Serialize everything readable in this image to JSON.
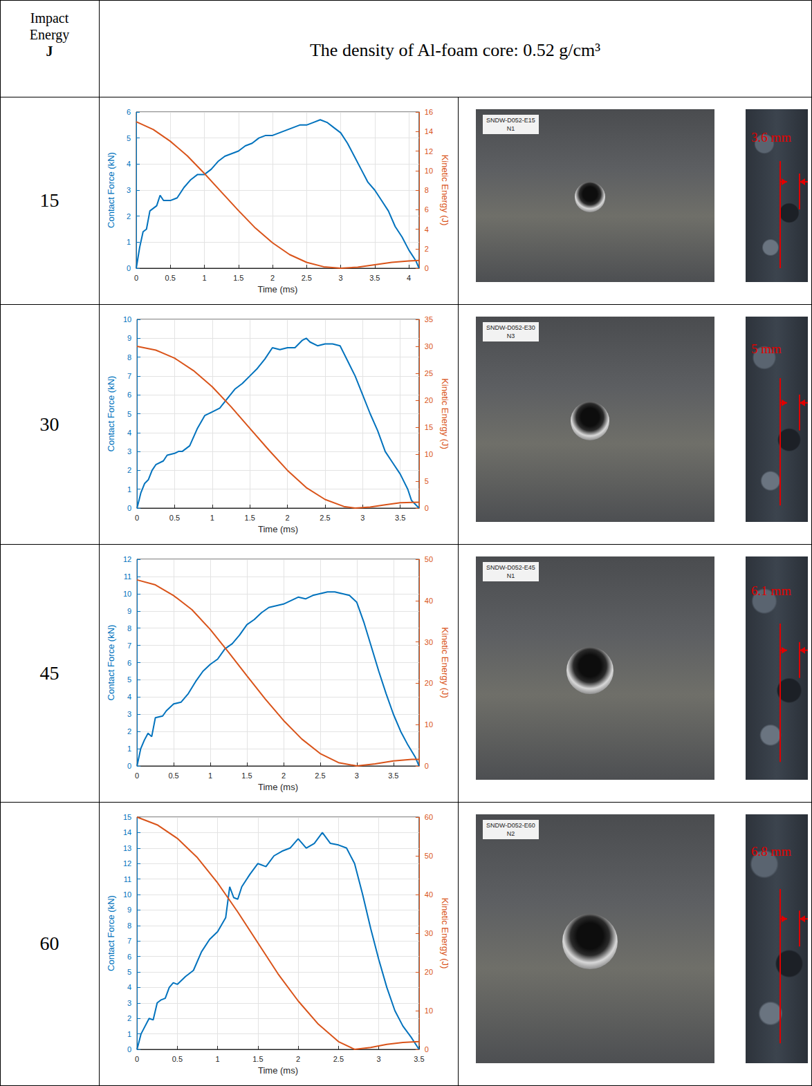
{
  "table": {
    "header": {
      "corner": [
        "Impact",
        "Energy",
        "J"
      ],
      "title": "The density of Al-foam core: 0.52 g/cm³"
    },
    "rows": [
      {
        "energy": 15,
        "specimen": [
          "SNDW-D052-E15",
          "N1"
        ],
        "dent_depth": "3.6 mm"
      },
      {
        "energy": 30,
        "specimen": [
          "SNDW-D052-E30",
          "N3"
        ],
        "dent_depth": "5 mm"
      },
      {
        "energy": 45,
        "specimen": [
          "SNDW-D052-E45",
          "N1"
        ],
        "dent_depth": "6.1 mm"
      },
      {
        "energy": 60,
        "specimen": [
          "SNDW-D052-E60",
          "N2"
        ],
        "dent_depth": "6.8 mm"
      }
    ]
  },
  "chart_data": [
    {
      "type": "line",
      "xlabel": "Time (ms)",
      "ylabel": "Contact Force (kN)",
      "y2label": "Kinetic Energy (J)",
      "xlim": [
        0,
        4.15
      ],
      "xticks": [
        0,
        0.5,
        1,
        1.5,
        2,
        2.5,
        3,
        3.5,
        4
      ],
      "ylim": [
        0,
        6
      ],
      "yticks": [
        0,
        1,
        2,
        3,
        4,
        5,
        6
      ],
      "y2lim": [
        0,
        16
      ],
      "y2ticks": [
        0,
        2,
        4,
        6,
        8,
        10,
        12,
        14,
        16
      ],
      "grid": true,
      "series": [
        {
          "color": "#0072bd",
          "x": [
            0,
            0.05,
            0.1,
            0.15,
            0.2,
            0.3,
            0.35,
            0.4,
            0.5,
            0.6,
            0.7,
            0.8,
            0.9,
            1.0,
            1.1,
            1.2,
            1.3,
            1.4,
            1.5,
            1.6,
            1.7,
            1.8,
            1.9,
            2.0,
            2.2,
            2.3,
            2.4,
            2.5,
            2.6,
            2.7,
            2.8,
            2.9,
            3.0,
            3.1,
            3.2,
            3.3,
            3.4,
            3.5,
            3.6,
            3.7,
            3.8,
            3.9,
            4.0,
            4.1,
            4.15
          ],
          "values": [
            0,
            0.8,
            1.4,
            1.5,
            2.2,
            2.4,
            2.8,
            2.6,
            2.6,
            2.7,
            3.1,
            3.4,
            3.6,
            3.6,
            3.8,
            4.1,
            4.3,
            4.4,
            4.5,
            4.7,
            4.8,
            5.0,
            5.1,
            5.1,
            5.3,
            5.4,
            5.5,
            5.5,
            5.6,
            5.7,
            5.6,
            5.4,
            5.2,
            4.8,
            4.3,
            3.8,
            3.3,
            3.0,
            2.6,
            2.2,
            1.6,
            1.2,
            0.7,
            0.3,
            0
          ]
        },
        {
          "color": "#d95319",
          "axis": "y2",
          "x": [
            0,
            0.25,
            0.5,
            0.75,
            1.0,
            1.25,
            1.5,
            1.75,
            2.0,
            2.25,
            2.5,
            2.75,
            3.0,
            3.25,
            3.5,
            3.75,
            4.0,
            4.15
          ],
          "values": [
            15,
            14.2,
            13,
            11.5,
            9.7,
            7.8,
            5.9,
            4.1,
            2.6,
            1.4,
            0.6,
            0.15,
            0,
            0.1,
            0.35,
            0.6,
            0.75,
            0.8
          ]
        }
      ]
    },
    {
      "type": "line",
      "xlabel": "Time (ms)",
      "ylabel": "Contact Force (kN)",
      "y2label": "Kinetic Energy (J)",
      "xlim": [
        0,
        3.75
      ],
      "xticks": [
        0,
        0.5,
        1,
        1.5,
        2,
        2.5,
        3,
        3.5
      ],
      "ylim": [
        0,
        10
      ],
      "yticks": [
        0,
        1,
        2,
        3,
        4,
        5,
        6,
        7,
        8,
        9,
        10
      ],
      "y2lim": [
        0,
        35
      ],
      "y2ticks": [
        0,
        5,
        10,
        15,
        20,
        25,
        30,
        35
      ],
      "grid": true,
      "series": [
        {
          "color": "#0072bd",
          "x": [
            0,
            0.05,
            0.1,
            0.15,
            0.2,
            0.25,
            0.35,
            0.4,
            0.5,
            0.55,
            0.6,
            0.7,
            0.8,
            0.9,
            1.0,
            1.1,
            1.2,
            1.3,
            1.4,
            1.5,
            1.6,
            1.7,
            1.8,
            1.9,
            2.0,
            2.1,
            2.2,
            2.25,
            2.3,
            2.4,
            2.5,
            2.6,
            2.7,
            2.8,
            2.9,
            3.0,
            3.1,
            3.2,
            3.3,
            3.4,
            3.5,
            3.6,
            3.65,
            3.75
          ],
          "values": [
            0,
            0.8,
            1.3,
            1.5,
            2.0,
            2.3,
            2.5,
            2.8,
            2.9,
            3.0,
            3.0,
            3.3,
            4.2,
            4.9,
            5.1,
            5.3,
            5.8,
            6.3,
            6.6,
            7.0,
            7.4,
            7.9,
            8.5,
            8.4,
            8.5,
            8.5,
            8.9,
            9.0,
            8.8,
            8.6,
            8.7,
            8.7,
            8.6,
            7.8,
            7.0,
            6.0,
            5.0,
            4.1,
            3.0,
            2.4,
            1.8,
            1.0,
            0.4,
            0
          ]
        },
        {
          "color": "#d95319",
          "axis": "y2",
          "x": [
            0,
            0.25,
            0.5,
            0.75,
            1.0,
            1.25,
            1.5,
            1.75,
            2.0,
            2.25,
            2.5,
            2.75,
            2.9,
            3.1,
            3.3,
            3.5,
            3.75
          ],
          "values": [
            30,
            29.3,
            27.8,
            25.5,
            22.5,
            18.8,
            14.8,
            10.8,
            7.0,
            3.8,
            1.6,
            0.3,
            0,
            0.2,
            0.6,
            1.0,
            1.1
          ]
        }
      ]
    },
    {
      "type": "line",
      "xlabel": "Time (ms)",
      "ylabel": "Contact Force (kN)",
      "y2label": "Kinetic Energy (J)",
      "xlim": [
        0,
        3.85
      ],
      "xticks": [
        0,
        0.5,
        1,
        1.5,
        2,
        2.5,
        3,
        3.5
      ],
      "ylim": [
        0,
        12
      ],
      "yticks": [
        0,
        1,
        2,
        3,
        4,
        5,
        6,
        7,
        8,
        9,
        10,
        11,
        12
      ],
      "y2lim": [
        0,
        50
      ],
      "y2ticks": [
        0,
        10,
        20,
        30,
        40,
        50
      ],
      "grid": true,
      "series": [
        {
          "color": "#0072bd",
          "x": [
            0,
            0.05,
            0.1,
            0.15,
            0.2,
            0.25,
            0.35,
            0.4,
            0.5,
            0.6,
            0.7,
            0.8,
            0.9,
            1.0,
            1.1,
            1.2,
            1.3,
            1.4,
            1.5,
            1.6,
            1.7,
            1.8,
            1.9,
            2.0,
            2.1,
            2.2,
            2.3,
            2.4,
            2.5,
            2.6,
            2.7,
            2.8,
            2.9,
            3.0,
            3.1,
            3.2,
            3.3,
            3.4,
            3.5,
            3.6,
            3.7,
            3.8,
            3.85
          ],
          "values": [
            0,
            1.0,
            1.5,
            1.9,
            1.7,
            2.8,
            2.9,
            3.2,
            3.6,
            3.7,
            4.2,
            4.9,
            5.5,
            5.9,
            6.2,
            6.8,
            7.1,
            7.6,
            8.2,
            8.5,
            8.9,
            9.2,
            9.3,
            9.4,
            9.6,
            9.8,
            9.7,
            9.9,
            10.0,
            10.1,
            10.1,
            10.0,
            9.9,
            9.5,
            8.3,
            6.9,
            5.5,
            4.2,
            3.0,
            2.0,
            1.2,
            0.5,
            0
          ]
        },
        {
          "color": "#d95319",
          "axis": "y2",
          "x": [
            0,
            0.25,
            0.5,
            0.75,
            1.0,
            1.25,
            1.5,
            1.75,
            2.0,
            2.25,
            2.5,
            2.75,
            3.0,
            3.25,
            3.5,
            3.75,
            3.85
          ],
          "values": [
            45,
            43.8,
            41.2,
            37.8,
            33,
            27.5,
            21.8,
            16.2,
            11.0,
            6.5,
            3.0,
            0.8,
            0,
            0.5,
            1.2,
            1.6,
            1.6
          ]
        }
      ]
    },
    {
      "type": "line",
      "xlabel": "Time (ms)",
      "ylabel": "Contact Force (kN)",
      "y2label": "Kinetic Energy (J)",
      "xlim": [
        0,
        3.5
      ],
      "xticks": [
        0,
        0.5,
        1,
        1.5,
        2,
        2.5,
        3,
        3.5
      ],
      "ylim": [
        0,
        15
      ],
      "yticks": [
        0,
        1,
        2,
        3,
        4,
        5,
        6,
        7,
        8,
        9,
        10,
        11,
        12,
        13,
        14,
        15
      ],
      "y2lim": [
        0,
        60
      ],
      "y2ticks": [
        0,
        10,
        20,
        30,
        40,
        50,
        60
      ],
      "grid": true,
      "series": [
        {
          "color": "#0072bd",
          "x": [
            0,
            0.05,
            0.1,
            0.15,
            0.2,
            0.25,
            0.3,
            0.35,
            0.4,
            0.45,
            0.5,
            0.6,
            0.7,
            0.8,
            0.9,
            1.0,
            1.1,
            1.15,
            1.2,
            1.25,
            1.3,
            1.4,
            1.5,
            1.6,
            1.7,
            1.8,
            1.9,
            2.0,
            2.1,
            2.2,
            2.3,
            2.4,
            2.5,
            2.6,
            2.7,
            2.8,
            2.9,
            3.0,
            3.1,
            3.2,
            3.3,
            3.4,
            3.5
          ],
          "values": [
            0,
            1.0,
            1.5,
            2.0,
            1.9,
            3.0,
            3.2,
            3.3,
            4.0,
            4.3,
            4.2,
            4.7,
            5.1,
            6.3,
            7.1,
            7.6,
            8.5,
            10.5,
            9.8,
            9.7,
            10.5,
            11.3,
            12.0,
            11.8,
            12.5,
            12.8,
            13.0,
            13.6,
            13.0,
            13.3,
            14.0,
            13.3,
            13.2,
            13.0,
            12.0,
            10.0,
            7.8,
            5.8,
            4.0,
            2.5,
            1.5,
            0.8,
            0
          ]
        },
        {
          "color": "#d95319",
          "axis": "y2",
          "x": [
            0,
            0.25,
            0.5,
            0.75,
            1.0,
            1.25,
            1.5,
            1.75,
            2.0,
            2.25,
            2.5,
            2.7,
            2.9,
            3.1,
            3.3,
            3.5
          ],
          "values": [
            60,
            58,
            54.5,
            49.5,
            43,
            35.5,
            27.5,
            19.5,
            12.5,
            6.5,
            2.0,
            0,
            0.5,
            1.3,
            1.8,
            2.0
          ]
        }
      ]
    }
  ]
}
